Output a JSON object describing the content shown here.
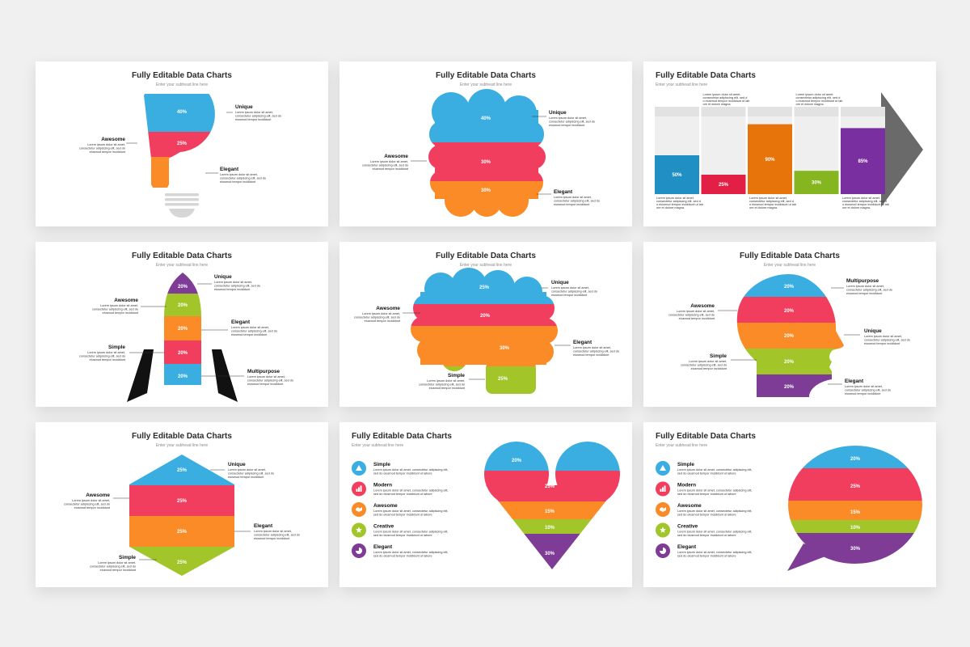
{
  "title": "Fully Editable Data Charts",
  "subhead": "Enter your subhead line here",
  "body": "Lorem ipsum dolor sit amet,",
  "body2": "consectetur adipiscing elit, sed do",
  "body3": "eiusmod tempor incididunt",
  "colors": {
    "blue": "#3aaee0",
    "red": "#f23e5e",
    "orange": "#fb8b26",
    "green": "#a2c529",
    "purple": "#7f3c96",
    "gray": "#6a6a6a"
  },
  "slides": [
    {
      "name": "bulb",
      "chart_data": {
        "type": "stacked-shape",
        "shape": "light-bulb",
        "segments": [
          {
            "label": "Unique",
            "value": "40%"
          },
          {
            "label": "Awesome",
            "value": "25%"
          },
          {
            "label": "Elegant",
            "value": "35%"
          }
        ]
      }
    },
    {
      "name": "cloud",
      "chart_data": {
        "type": "stacked-shape",
        "shape": "cloud",
        "segments": [
          {
            "label": "Unique",
            "value": "40%"
          },
          {
            "label": "Awesome",
            "value": "30%"
          },
          {
            "label": "Elegant",
            "value": "30%"
          }
        ]
      }
    },
    {
      "name": "bars",
      "chart_data": {
        "type": "bar",
        "values": [
          "50%",
          "25%",
          "90%",
          "30%",
          "85%"
        ],
        "note": "Lorem ipsum dolor sit amet, consectetur adipiscing elit, sed do eiusmod tempor incididunt ut labore et dolore magna."
      }
    },
    {
      "name": "rocket",
      "chart_data": {
        "type": "stacked-shape",
        "shape": "rocket",
        "segments": [
          {
            "label": "Unique",
            "value": "20%"
          },
          {
            "label": "Awesome",
            "value": "20%"
          },
          {
            "label": "Elegant",
            "value": "20%"
          },
          {
            "label": "Simple",
            "value": "20%"
          },
          {
            "label": "Multipurpose",
            "value": "20%"
          }
        ]
      }
    },
    {
      "name": "brain",
      "chart_data": {
        "type": "stacked-shape",
        "shape": "brain",
        "segments": [
          {
            "label": "Unique",
            "value": "25%"
          },
          {
            "label": "Awesome",
            "value": "20%"
          },
          {
            "label": "Elegant",
            "value": "30%"
          },
          {
            "label": "Simple",
            "value": "25%"
          }
        ]
      }
    },
    {
      "name": "head",
      "chart_data": {
        "type": "stacked-shape",
        "shape": "head",
        "segments": [
          {
            "label": "Multipurpose",
            "value": "20%"
          },
          {
            "label": "Awesome",
            "value": "20%"
          },
          {
            "label": "Unique",
            "value": "20%"
          },
          {
            "label": "Simple",
            "value": "20%"
          },
          {
            "label": "Elegant",
            "value": "20%"
          }
        ]
      }
    },
    {
      "name": "hexagon",
      "chart_data": {
        "type": "stacked-shape",
        "shape": "hexagon",
        "segments": [
          {
            "label": "Unique",
            "value": "25%"
          },
          {
            "label": "Awesome",
            "value": "25%"
          },
          {
            "label": "Elegant",
            "value": "25%"
          },
          {
            "label": "Simple",
            "value": "25%"
          }
        ]
      }
    },
    {
      "name": "heart",
      "chart_data": {
        "type": "stacked-shape",
        "shape": "heart",
        "segments": [
          {
            "label": "Simple",
            "value": "20%"
          },
          {
            "label": "Modern",
            "value": "25%"
          },
          {
            "label": "Awesome",
            "value": "15%"
          },
          {
            "label": "Creative",
            "value": "10%"
          },
          {
            "label": "Elegant",
            "value": "30%"
          }
        ]
      }
    },
    {
      "name": "bubble",
      "chart_data": {
        "type": "stacked-shape",
        "shape": "speech-bubble",
        "segments": [
          {
            "label": "Simple",
            "value": "20%"
          },
          {
            "label": "Modern",
            "value": "25%"
          },
          {
            "label": "Awesome",
            "value": "15%"
          },
          {
            "label": "Creative",
            "value": "10%"
          },
          {
            "label": "Elegant",
            "value": "30%"
          }
        ]
      }
    }
  ],
  "legend_body1": "Lorem ipsum dolor sit amet, consectetur adipiscing elit,",
  "legend_body2": "sed do eiusmod tempor incididunt ut labore",
  "legend_icons": [
    "warning-icon",
    "bar-chart-icon",
    "handshake-icon",
    "star-icon",
    "pie-chart-icon"
  ]
}
